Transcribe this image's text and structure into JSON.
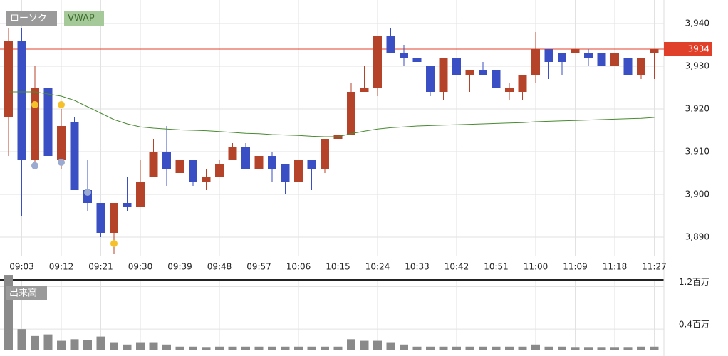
{
  "chart_data": {
    "type": "candlestick",
    "legend": [
      "ローソク",
      "VWAP"
    ],
    "volume_label": "出来高",
    "categories": [
      null,
      "09:03",
      null,
      null,
      "09:12",
      null,
      null,
      "09:21",
      null,
      null,
      "09:30",
      null,
      null,
      "09:39",
      null,
      null,
      "09:48",
      null,
      null,
      "09:57",
      null,
      null,
      "10:06",
      null,
      null,
      "10:15",
      null,
      null,
      "10:24",
      null,
      null,
      "10:33",
      null,
      null,
      "10:42",
      null,
      null,
      "10:51",
      null,
      null,
      "11:00",
      null,
      null,
      "11:09",
      null,
      null,
      "11:18",
      null,
      null,
      "11:27"
    ],
    "open": [
      3918,
      3936,
      3908,
      3925,
      3908,
      3917,
      3901,
      3898,
      3891,
      3898,
      3897,
      3904,
      3910,
      3905,
      3908,
      3903,
      3904,
      3908,
      3911,
      3906,
      3909,
      3907,
      3903,
      3908,
      3906,
      3913,
      3914,
      3924,
      3925,
      3937,
      3933,
      3932,
      3930,
      3924,
      3932,
      3928,
      3929,
      3929,
      3924,
      3924,
      3928,
      3934,
      3933,
      3933,
      3933,
      3933,
      3930,
      3932,
      3928,
      3933
    ],
    "high": [
      3939,
      3939,
      3930,
      3935,
      3920,
      3918,
      3908,
      3898,
      3898,
      3904,
      3908,
      3913,
      3916,
      3908,
      3908,
      3906,
      3908,
      3912,
      3912,
      3911,
      3910,
      3907,
      3908,
      3908,
      3913,
      3915,
      3926,
      3930,
      3937,
      3939,
      3935,
      3932,
      3930,
      3932,
      3932,
      3929,
      3931,
      3929,
      3926,
      3928,
      3938,
      3934,
      3933,
      3934,
      3934,
      3933,
      3933,
      3932,
      3932,
      3934
    ],
    "low": [
      3909,
      3895,
      3907,
      3907,
      3906,
      3901,
      3896,
      3890,
      3886,
      3896,
      3897,
      3904,
      3902,
      3898,
      3902,
      3901,
      3904,
      3908,
      3906,
      3904,
      3903,
      3900,
      3903,
      3901,
      3905,
      3913,
      3914,
      3924,
      3923,
      3933,
      3930,
      3927,
      3923,
      3922,
      3928,
      3924,
      3928,
      3924,
      3922,
      3922,
      3926,
      3927,
      3928,
      3933,
      3930,
      3930,
      3930,
      3927,
      3927,
      3927
    ],
    "close": [
      3936,
      3908,
      3925,
      3909,
      3916,
      3901,
      3898,
      3891,
      3898,
      3897,
      3903,
      3910,
      3906,
      3908,
      3903,
      3904,
      3907,
      3911,
      3906,
      3909,
      3906,
      3903,
      3908,
      3906,
      3913,
      3914,
      3924,
      3925,
      3937,
      3933,
      3932,
      3931,
      3924,
      3932,
      3928,
      3929,
      3928,
      3925,
      3925,
      3928,
      3934,
      3931,
      3931,
      3934,
      3932,
      3930,
      3933,
      3928,
      3932,
      3934
    ],
    "up_color": "#b5432a",
    "down_color": "#3a4fc4",
    "vwap": {
      "color": "#4a8a32",
      "values": [
        3924,
        3924,
        3924,
        3923.5,
        3923,
        3922,
        3920.5,
        3919,
        3917.5,
        3916.5,
        3915.8,
        3915.5,
        3915.3,
        3915.1,
        3915,
        3914.9,
        3914.7,
        3914.5,
        3914.3,
        3914.2,
        3914,
        3913.9,
        3913.8,
        3913.6,
        3913.5,
        3913.5,
        3914.2,
        3914.8,
        3915.3,
        3915.6,
        3915.8,
        3916,
        3916.1,
        3916.2,
        3916.3,
        3916.4,
        3916.5,
        3916.6,
        3916.7,
        3916.8,
        3917,
        3917.1,
        3917.2,
        3917.3,
        3917.4,
        3917.5,
        3917.6,
        3917.7,
        3917.8,
        3918
      ]
    },
    "markers": [
      {
        "candle": 2,
        "value": 3921,
        "color": "#f5c12a"
      },
      {
        "candle": 4,
        "value": 3921,
        "color": "#f5c12a"
      },
      {
        "candle": 8,
        "value": 3888.5,
        "color": "#f5c12a"
      },
      {
        "candle": 2,
        "value": 3906.7,
        "color": "#9aaad0"
      },
      {
        "candle": 4,
        "value": 3907.5,
        "color": "#9aaad0"
      },
      {
        "candle": 6,
        "value": 3900.5,
        "color": "#9aaad0"
      }
    ],
    "current_price": 3934,
    "current_price_color": "#e0402a",
    "ylim": [
      3885.5,
      3945.5
    ],
    "yticks": [
      {
        "value": 3890,
        "label": "3,890"
      },
      {
        "value": 3900,
        "label": "3,900"
      },
      {
        "value": 3910,
        "label": "3,910"
      },
      {
        "value": 3920,
        "label": "3,920"
      },
      {
        "value": 3930,
        "label": "3,930"
      },
      {
        "value": 3940,
        "label": "3,940"
      }
    ],
    "volume": {
      "color": "#8a8a8a",
      "values": [
        1.42,
        0.4,
        0.27,
        0.3,
        0.18,
        0.21,
        0.19,
        0.26,
        0.14,
        0.11,
        0.14,
        0.14,
        0.11,
        0.07,
        0.07,
        0.05,
        0.07,
        0.07,
        0.07,
        0.07,
        0.07,
        0.07,
        0.07,
        0.07,
        0.07,
        0.07,
        0.21,
        0.18,
        0.18,
        0.14,
        0.11,
        0.07,
        0.07,
        0.07,
        0.07,
        0.07,
        0.07,
        0.07,
        0.07,
        0.07,
        0.11,
        0.07,
        0.07,
        0.05,
        0.05,
        0.05,
        0.05,
        0.05,
        0.07,
        0.07
      ]
    },
    "volume_ylim": [
      0,
      1.3
    ],
    "volume_yticks": [
      {
        "value": 0.4,
        "label": "0.4百万"
      },
      {
        "value": 1.2,
        "label": "1.2百万"
      }
    ],
    "grid": true
  }
}
